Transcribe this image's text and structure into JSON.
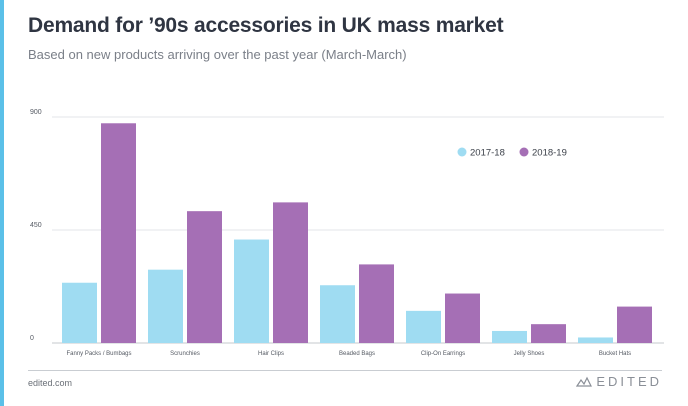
{
  "header": {
    "title": "Demand for ’90s accessories in UK mass market",
    "subtitle": "Based on new products arriving over the past year (March-March)"
  },
  "footer": {
    "source": "edited.com",
    "brand": "EDITED",
    "brand_icon": "edited-logo-icon"
  },
  "colors": {
    "accent": "#5bc0e8",
    "series_2017": "#9fdcf2",
    "series_2018": "#a56fb5",
    "grid": "#e3e6ea",
    "tick": "#555a63"
  },
  "chart_data": {
    "type": "bar",
    "title": "Demand for ’90s accessories in UK mass market",
    "subtitle": "Based on new products arriving over the past year (March-March)",
    "categories": [
      "Fanny Packs / Bumbags",
      "Scrunchies",
      "Hair Clips",
      "Beaded Bags",
      "Clip-On Earrings",
      "Jelly Shoes",
      "Bucket Hats"
    ],
    "series": [
      {
        "name": "2017-18",
        "values": [
          240,
          292,
          412,
          230,
          128,
          48,
          22
        ]
      },
      {
        "name": "2018-19",
        "values": [
          875,
          525,
          560,
          313,
          197,
          75,
          145
        ]
      }
    ],
    "yticks": [
      0,
      450,
      900
    ],
    "ylim": [
      0,
      900
    ],
    "xlabel": "",
    "ylabel": "",
    "grid": true,
    "legend_position": "top-right"
  }
}
